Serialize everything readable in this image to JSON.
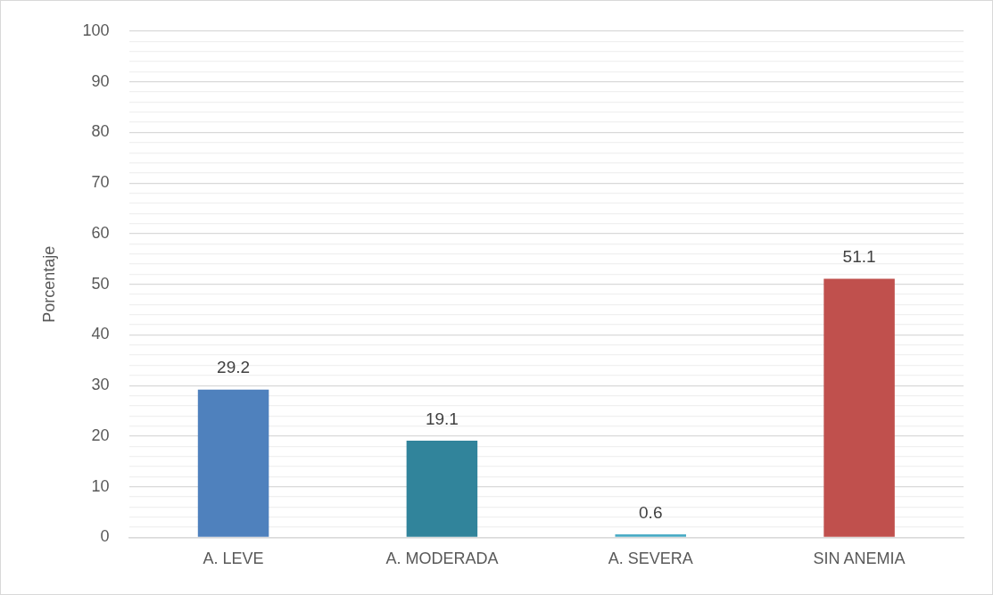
{
  "chart_data": {
    "type": "bar",
    "ylabel": "Porcentaje",
    "categories": [
      "A. LEVE",
      "A. MODERADA",
      "A. SEVERA",
      "SIN ANEMIA"
    ],
    "values": [
      29.2,
      19.1,
      0.6,
      51.1
    ],
    "colors": [
      "#4f81bd",
      "#31849b",
      "#4bacc6",
      "#c0504d"
    ],
    "ylim": [
      0,
      100
    ],
    "yticks": [
      0,
      {
        "value": 2,
        "label": null
      },
      {
        "value": 4,
        "label": null
      },
      {
        "value": 6,
        "label": null
      },
      {
        "value": 8,
        "label": null
      },
      10,
      {
        "value": 12,
        "label": null
      },
      {
        "value": 14,
        "label": null
      },
      {
        "value": 16,
        "label": null
      },
      {
        "value": 18,
        "label": null
      },
      20,
      {
        "value": 22,
        "label": null
      },
      {
        "value": 24,
        "label": null
      },
      {
        "value": 26,
        "label": null
      },
      {
        "value": 28,
        "label": null
      },
      30,
      {
        "value": 32,
        "label": null
      },
      {
        "value": 34,
        "label": null
      },
      {
        "value": 36,
        "label": null
      },
      {
        "value": 38,
        "label": null
      },
      40,
      {
        "value": 42,
        "label": null
      },
      {
        "value": 44,
        "label": null
      },
      {
        "value": 46,
        "label": null
      },
      {
        "value": 48,
        "label": null
      },
      50,
      {
        "value": 52,
        "label": null
      },
      {
        "value": 54,
        "label": null
      },
      {
        "value": 56,
        "label": null
      },
      {
        "value": 58,
        "label": null
      },
      60,
      {
        "value": 62,
        "label": null
      },
      {
        "value": 64,
        "label": null
      },
      {
        "value": 66,
        "label": null
      },
      {
        "value": 68,
        "label": null
      },
      70,
      {
        "value": 72,
        "label": null
      },
      {
        "value": 74,
        "label": null
      },
      {
        "value": 76,
        "label": null
      },
      {
        "value": 78,
        "label": null
      },
      80,
      {
        "value": 82,
        "label": null
      },
      {
        "value": 84,
        "label": null
      },
      {
        "value": 86,
        "label": null
      },
      {
        "value": 88,
        "label": null
      },
      90,
      {
        "value": 92,
        "label": null
      },
      {
        "value": 94,
        "label": null
      },
      {
        "value": 96,
        "label": null
      },
      {
        "value": 98,
        "label": null
      },
      100
    ],
    "grid": "y",
    "data_labels": true,
    "legend": false
  }
}
